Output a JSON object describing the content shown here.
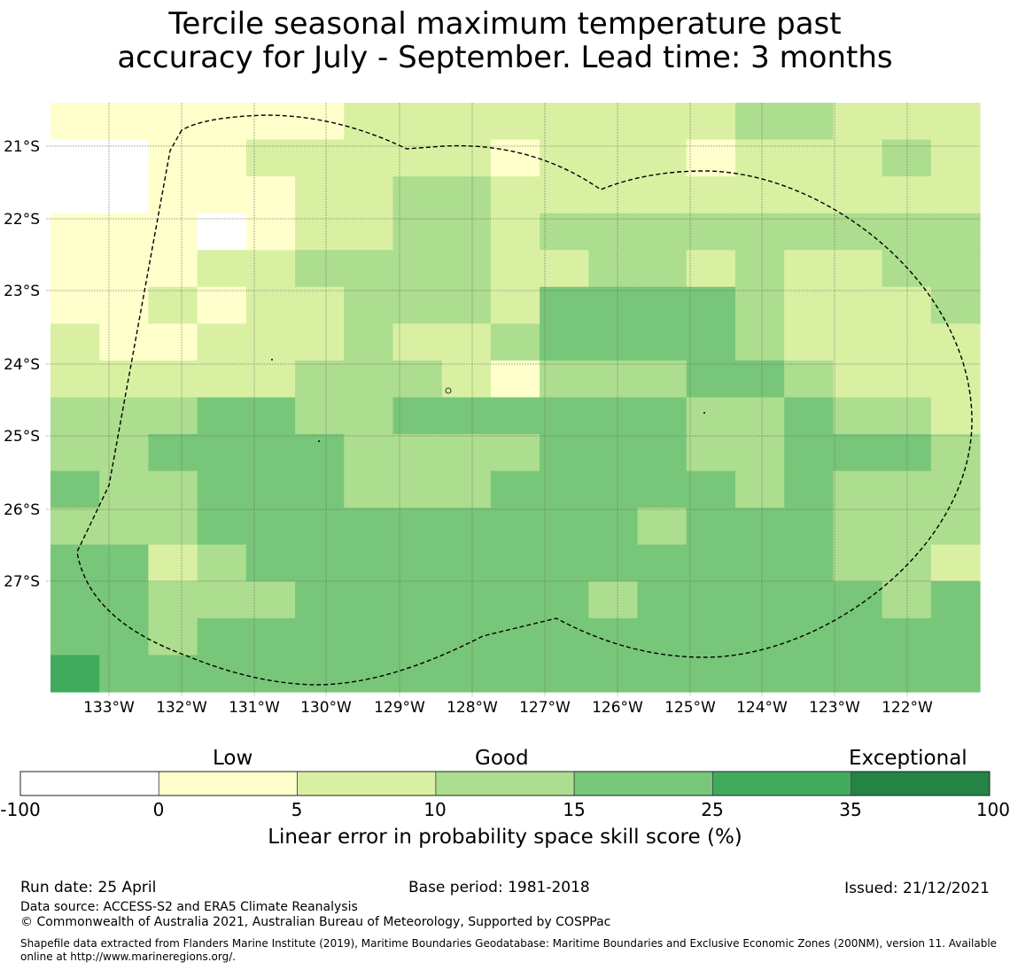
{
  "title": {
    "line1": "Tercile seasonal maximum temperature past",
    "line2": "accuracy for July - September. Lead time: 3 months"
  },
  "map": {
    "lat_labels": [
      "21°S",
      "22°S",
      "23°S",
      "24°S",
      "25°S",
      "26°S",
      "27°S"
    ],
    "lon_labels": [
      "133°W",
      "132°W",
      "131°W",
      "130°W",
      "129°W",
      "128°W",
      "127°W",
      "126°W",
      "125°W",
      "124°W",
      "123°W",
      "122°W"
    ],
    "grid_colors": [
      "#ffffff",
      "#ffffcc",
      "#d9f0a3",
      "#addd8e",
      "#78c679",
      "#41ab5d",
      "#238443"
    ],
    "grid_classes": [
      [
        1,
        1,
        1,
        1,
        1,
        1,
        2,
        2,
        2,
        2,
        2,
        2,
        2,
        2,
        3,
        3,
        2,
        2,
        2
      ],
      [
        0,
        0,
        1,
        1,
        2,
        2,
        2,
        2,
        2,
        1,
        2,
        2,
        2,
        1,
        2,
        2,
        2,
        3,
        2
      ],
      [
        0,
        0,
        1,
        1,
        1,
        2,
        2,
        3,
        3,
        2,
        2,
        2,
        2,
        2,
        2,
        2,
        2,
        2,
        2
      ],
      [
        1,
        1,
        1,
        0,
        1,
        2,
        2,
        3,
        3,
        2,
        3,
        3,
        3,
        3,
        3,
        3,
        3,
        3,
        3
      ],
      [
        1,
        1,
        1,
        2,
        2,
        3,
        3,
        3,
        3,
        2,
        2,
        3,
        3,
        2,
        3,
        2,
        2,
        3,
        3
      ],
      [
        1,
        1,
        2,
        1,
        2,
        2,
        3,
        3,
        3,
        2,
        4,
        4,
        4,
        4,
        3,
        2,
        2,
        2,
        3
      ],
      [
        2,
        1,
        1,
        2,
        2,
        2,
        3,
        2,
        2,
        3,
        4,
        4,
        4,
        4,
        3,
        2,
        2,
        2,
        2
      ],
      [
        2,
        2,
        2,
        2,
        2,
        3,
        3,
        3,
        2,
        1,
        3,
        3,
        3,
        4,
        4,
        3,
        2,
        2,
        2
      ],
      [
        3,
        3,
        3,
        4,
        4,
        3,
        3,
        4,
        4,
        4,
        4,
        4,
        4,
        3,
        3,
        4,
        3,
        3,
        2
      ],
      [
        3,
        3,
        4,
        4,
        4,
        4,
        3,
        3,
        3,
        3,
        4,
        4,
        4,
        3,
        3,
        4,
        4,
        4,
        3
      ],
      [
        4,
        3,
        3,
        4,
        4,
        4,
        3,
        3,
        3,
        4,
        4,
        4,
        4,
        4,
        3,
        4,
        3,
        3,
        3
      ],
      [
        3,
        3,
        3,
        4,
        4,
        4,
        4,
        4,
        4,
        4,
        4,
        4,
        3,
        4,
        4,
        4,
        3,
        3,
        3
      ],
      [
        4,
        4,
        2,
        3,
        4,
        4,
        4,
        4,
        4,
        4,
        4,
        4,
        4,
        4,
        4,
        4,
        3,
        3,
        2
      ],
      [
        4,
        4,
        3,
        3,
        3,
        4,
        4,
        4,
        4,
        4,
        4,
        3,
        4,
        4,
        4,
        4,
        4,
        3,
        4
      ],
      [
        4,
        4,
        3,
        4,
        4,
        4,
        4,
        4,
        4,
        4,
        4,
        4,
        4,
        4,
        4,
        4,
        4,
        4,
        4
      ],
      [
        5,
        4,
        4,
        4,
        4,
        4,
        4,
        4,
        4,
        4,
        4,
        4,
        4,
        4,
        4,
        4,
        4,
        4,
        4
      ]
    ]
  },
  "colorbar": {
    "categories": [
      "Low",
      "Good",
      "Exceptional"
    ],
    "ticks": [
      "-100",
      "0",
      "5",
      "10",
      "15",
      "25",
      "35",
      "100"
    ],
    "colors": [
      "#ffffff",
      "#ffffcc",
      "#d9f0a3",
      "#addd8e",
      "#78c679",
      "#41ab5d",
      "#238443"
    ],
    "label": "Linear error in probability space skill score (%)"
  },
  "footer": {
    "run_date": "Run date: 25 April",
    "base_period": "Base period: 1981-2018",
    "issued": "Issued: 21/12/2021",
    "data_source": "Data source: ACCESS-S2 and ERA5 Climate Reanalysis",
    "copyright": "© Commonwealth of Australia 2021, Australian Bureau of Meteorology, Supported by COSPPac",
    "shapefile_line1": "Shapefile data extracted from Flanders Marine Institute (2019), Maritime Boundaries Geodatabase: Maritime Boundaries and Exclusive Economic Zones (200NM), version 11. Available",
    "shapefile_line2": "online at http://www.marineregions.org/."
  }
}
